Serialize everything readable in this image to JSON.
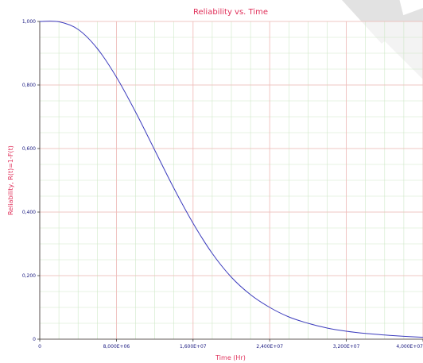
{
  "chart_data": {
    "type": "line",
    "title": "Reliability vs. Time",
    "xlabel": "Time (Hr)",
    "ylabel": "Reliability, R(t)=1-F(t)",
    "xlim": [
      0,
      40000000
    ],
    "ylim": [
      0,
      1
    ],
    "x_ticks": [
      0,
      8000000,
      16000000,
      24000000,
      32000000,
      40000000
    ],
    "x_tick_labels": [
      "0",
      "8,000E+06",
      "1,600E+07",
      "2,400E+07",
      "3,200E+07",
      "4,000E+07"
    ],
    "y_ticks": [
      0,
      0.2,
      0.4,
      0.6,
      0.8,
      1.0
    ],
    "y_tick_labels": [
      "0",
      "0,200",
      "0,400",
      "0,600",
      "0,800",
      "1,000"
    ],
    "grid": true,
    "colors": {
      "line": "#3b3bbd",
      "major_grid": "#f2b8b8",
      "minor_grid": "#cfe8c8",
      "title": "#e0305a",
      "tick_text": "#1a1a80",
      "watermark": "#d8d8d8"
    },
    "series": [
      {
        "x": [
          0,
          2000000,
          4000000,
          6000000,
          8000000,
          10000000,
          12000000,
          14000000,
          16000000,
          18000000,
          20000000,
          22000000,
          24000000,
          26000000,
          28000000,
          30000000,
          32000000,
          34000000,
          36000000,
          38000000,
          40000000
        ],
        "values": [
          1.0,
          0.999,
          0.975,
          0.915,
          0.825,
          0.715,
          0.595,
          0.475,
          0.365,
          0.27,
          0.195,
          0.14,
          0.1,
          0.07,
          0.05,
          0.035,
          0.025,
          0.018,
          0.013,
          0.009,
          0.006
        ]
      }
    ]
  }
}
